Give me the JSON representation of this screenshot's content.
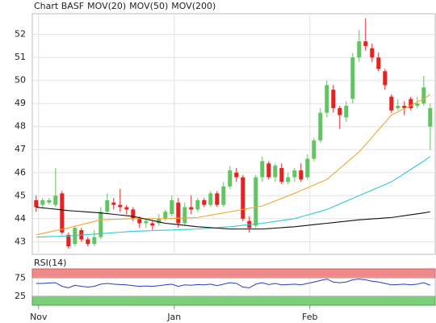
{
  "chart_data": [
    {
      "type": "candlestick",
      "title": "Chart BASF",
      "categories": [
        "Nov",
        null,
        null,
        null,
        null,
        null,
        null,
        null,
        null,
        null,
        null,
        null,
        null,
        null,
        null,
        null,
        null,
        null,
        null,
        null,
        null,
        "Jan",
        null,
        null,
        null,
        null,
        null,
        null,
        null,
        null,
        null,
        null,
        null,
        null,
        null,
        null,
        null,
        null,
        null,
        null,
        null,
        null,
        "Feb",
        null,
        null,
        null,
        null,
        null,
        null,
        null,
        null,
        null,
        null,
        null,
        null,
        null,
        null,
        null,
        null,
        null,
        null,
        null
      ],
      "open": [
        44.8,
        44.6,
        44.7,
        44.6,
        45.1,
        43.3,
        42.9,
        43.5,
        43.1,
        42.9,
        43.2,
        44.3,
        44.7,
        44.6,
        44.5,
        44.4,
        44.0,
        43.8,
        43.8,
        43.8,
        44.0,
        44.2,
        44.7,
        43.8,
        44.5,
        44.4,
        44.8,
        44.6,
        45.1,
        44.6,
        45.4,
        46.0,
        45.8,
        43.9,
        43.7,
        45.8,
        46.4,
        45.8,
        46.2,
        45.6,
        45.8,
        46.1,
        45.8,
        46.6,
        47.4,
        48.6,
        49.6,
        48.8,
        48.4,
        49.2,
        51.0,
        51.7,
        51.4,
        51.0,
        50.4,
        49.3,
        48.8,
        48.9,
        49.2,
        48.9,
        49.0,
        48.0
      ],
      "high": [
        45.0,
        44.9,
        44.9,
        46.2,
        45.2,
        43.4,
        43.7,
        43.6,
        43.2,
        43.5,
        44.5,
        45.1,
        44.9,
        45.3,
        44.6,
        44.5,
        44.1,
        44.0,
        43.9,
        44.2,
        44.4,
        45.0,
        44.9,
        44.7,
        45.0,
        44.9,
        44.9,
        45.2,
        45.2,
        45.6,
        46.3,
        46.2,
        45.9,
        44.1,
        45.9,
        46.7,
        46.5,
        46.4,
        46.4,
        46.0,
        46.2,
        46.4,
        46.8,
        47.5,
        48.8,
        50.0,
        49.8,
        48.9,
        49.1,
        51.2,
        52.2,
        52.7,
        51.6,
        51.2,
        50.5,
        49.4,
        49.2,
        49.1,
        49.3,
        49.3,
        50.2,
        49.0
      ],
      "low": [
        44.3,
        44.5,
        44.6,
        44.5,
        43.3,
        42.7,
        42.8,
        43.0,
        42.8,
        42.8,
        43.1,
        44.2,
        44.4,
        44.3,
        44.2,
        43.9,
        43.6,
        43.6,
        43.5,
        43.7,
        43.9,
        44.1,
        43.6,
        43.7,
        44.2,
        44.3,
        44.5,
        44.5,
        44.5,
        44.5,
        45.3,
        45.6,
        43.9,
        43.4,
        43.6,
        45.6,
        45.7,
        45.6,
        45.5,
        45.5,
        45.6,
        45.6,
        45.7,
        46.5,
        47.3,
        48.4,
        48.6,
        47.9,
        48.2,
        49.0,
        50.8,
        51.3,
        50.8,
        50.4,
        49.6,
        48.6,
        48.7,
        48.5,
        48.7,
        48.8,
        48.9,
        47.0
      ],
      "close": [
        44.5,
        44.8,
        44.8,
        45.0,
        43.4,
        42.8,
        43.6,
        43.1,
        42.9,
        43.2,
        44.3,
        44.8,
        44.6,
        44.5,
        44.4,
        44.0,
        43.8,
        43.9,
        43.7,
        44.0,
        44.3,
        44.8,
        43.8,
        44.5,
        44.4,
        44.8,
        44.6,
        45.1,
        44.6,
        45.4,
        46.1,
        45.8,
        44.0,
        43.6,
        45.8,
        46.5,
        45.8,
        46.3,
        45.6,
        45.8,
        46.1,
        45.7,
        46.6,
        47.4,
        48.6,
        49.8,
        48.8,
        48.5,
        48.9,
        51.0,
        51.7,
        51.5,
        51.0,
        50.5,
        49.8,
        48.7,
        48.9,
        48.8,
        48.8,
        49.0,
        49.7,
        48.8
      ],
      "up_color": "#66c266",
      "down_color": "#e02424",
      "series": [
        {
          "name": "MOV(20)",
          "color": "#f0a830",
          "values": [
            43.3,
            43.36,
            43.42,
            43.48,
            43.54,
            43.6,
            43.67,
            43.74,
            43.81,
            43.88,
            43.95,
            43.96,
            43.97,
            43.98,
            43.99,
            44.0,
            44.0,
            44.0,
            44.0,
            44.0,
            44.0,
            44.01,
            44.02,
            44.03,
            44.04,
            44.05,
            44.1,
            44.15,
            44.2,
            44.25,
            44.3,
            44.35,
            44.4,
            44.45,
            44.5,
            44.55,
            44.66,
            44.77,
            44.88,
            44.99,
            45.1,
            45.22,
            45.34,
            45.46,
            45.58,
            45.7,
            45.94,
            46.18,
            46.42,
            46.66,
            46.9,
            47.22,
            47.54,
            47.86,
            48.18,
            48.5,
            48.64,
            48.78,
            48.92,
            49.06,
            49.2,
            49.4
          ]
        },
        {
          "name": "MOV(50)",
          "color": "#30c8d8",
          "values": [
            43.2,
            43.21,
            43.22,
            43.23,
            43.24,
            43.25,
            43.27,
            43.29,
            43.31,
            43.33,
            43.35,
            43.37,
            43.39,
            43.41,
            43.43,
            43.45,
            43.46,
            43.47,
            43.48,
            43.49,
            43.5,
            43.51,
            43.52,
            43.53,
            43.54,
            43.55,
            43.57,
            43.59,
            43.61,
            43.63,
            43.65,
            43.68,
            43.71,
            43.74,
            43.77,
            43.8,
            43.84,
            43.88,
            43.92,
            43.96,
            44.0,
            44.08,
            44.16,
            44.24,
            44.32,
            44.4,
            44.52,
            44.64,
            44.76,
            44.88,
            45.0,
            45.12,
            45.24,
            45.36,
            45.48,
            45.6,
            45.78,
            45.96,
            46.14,
            46.32,
            46.5,
            46.7
          ]
        },
        {
          "name": "MOV(200)",
          "color": "#111111",
          "values": [
            44.5,
            44.47,
            44.44,
            44.41,
            44.38,
            44.35,
            44.33,
            44.31,
            44.29,
            44.27,
            44.25,
            44.22,
            44.19,
            44.16,
            44.13,
            44.1,
            44.04,
            43.98,
            43.92,
            43.86,
            43.8,
            43.77,
            43.74,
            43.71,
            43.68,
            43.65,
            43.63,
            43.61,
            43.59,
            43.57,
            43.55,
            43.55,
            43.55,
            43.55,
            43.55,
            43.55,
            43.57,
            43.59,
            43.61,
            43.63,
            43.65,
            43.68,
            43.71,
            43.74,
            43.77,
            43.8,
            43.83,
            43.86,
            43.89,
            43.92,
            43.95,
            43.97,
            43.99,
            44.01,
            44.03,
            44.05,
            44.09,
            44.13,
            44.17,
            44.21,
            44.25,
            44.3
          ]
        }
      ],
      "ylim": [
        42.45,
        52.9
      ],
      "yticks": [
        43,
        44,
        45,
        46,
        47,
        48,
        49,
        50,
        51,
        52
      ],
      "grid": true
    },
    {
      "type": "line",
      "title": "RSI(14)",
      "series": [
        {
          "color": "#2a3cc8",
          "values": [
            60,
            60,
            61,
            62,
            52,
            48,
            55,
            52,
            50,
            52,
            58,
            60,
            58,
            57,
            56,
            54,
            52,
            53,
            52,
            54,
            56,
            58,
            52,
            56,
            55,
            57,
            56,
            58,
            54,
            58,
            62,
            60,
            50,
            48,
            58,
            62,
            57,
            60,
            56,
            57,
            58,
            56,
            60,
            64,
            68,
            72,
            64,
            62,
            64,
            70,
            72,
            70,
            66,
            64,
            60,
            56,
            57,
            58,
            56,
            58,
            62,
            55
          ]
        }
      ],
      "ylim": [
        0,
        100
      ],
      "yticks": [
        75,
        25
      ],
      "upper_band_color": "#f08a8a",
      "lower_band_color": "#7ad07a"
    }
  ]
}
